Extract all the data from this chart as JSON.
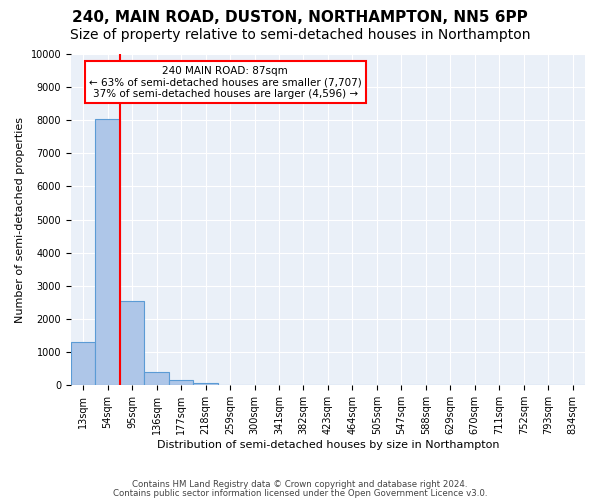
{
  "title": "240, MAIN ROAD, DUSTON, NORTHAMPTON, NN5 6PP",
  "subtitle": "Size of property relative to semi-detached houses in Northampton",
  "xlabel": "Distribution of semi-detached houses by size in Northampton",
  "ylabel": "Number of semi-detached properties",
  "footnote1": "Contains HM Land Registry data © Crown copyright and database right 2024.",
  "footnote2": "Contains public sector information licensed under the Open Government Licence v3.0.",
  "bins": [
    "13sqm",
    "54sqm",
    "95sqm",
    "136sqm",
    "177sqm",
    "218sqm",
    "259sqm",
    "300sqm",
    "341sqm",
    "382sqm",
    "423sqm",
    "464sqm",
    "505sqm",
    "547sqm",
    "588sqm",
    "629sqm",
    "670sqm",
    "711sqm",
    "752sqm",
    "793sqm",
    "834sqm"
  ],
  "values": [
    1300,
    8050,
    2550,
    400,
    150,
    80,
    0,
    0,
    0,
    0,
    0,
    0,
    0,
    0,
    0,
    0,
    0,
    0,
    0,
    0,
    0
  ],
  "bar_color": "#aec6e8",
  "bar_edge_color": "#5b9bd5",
  "vline_pos": 1.5,
  "vline_color": "red",
  "subject_label": "240 MAIN ROAD: 87sqm",
  "annotation_smaller": "← 63% of semi-detached houses are smaller (7,707)",
  "annotation_larger": "37% of semi-detached houses are larger (4,596) →",
  "annotation_box_color": "white",
  "annotation_box_edge": "red",
  "ylim": [
    0,
    10000
  ],
  "yticks": [
    0,
    1000,
    2000,
    3000,
    4000,
    5000,
    6000,
    7000,
    8000,
    9000,
    10000
  ],
  "bg_color": "#eaf0f8",
  "grid_color": "white",
  "title_fontsize": 11,
  "subtitle_fontsize": 10,
  "axis_fontsize": 8,
  "tick_fontsize": 7
}
